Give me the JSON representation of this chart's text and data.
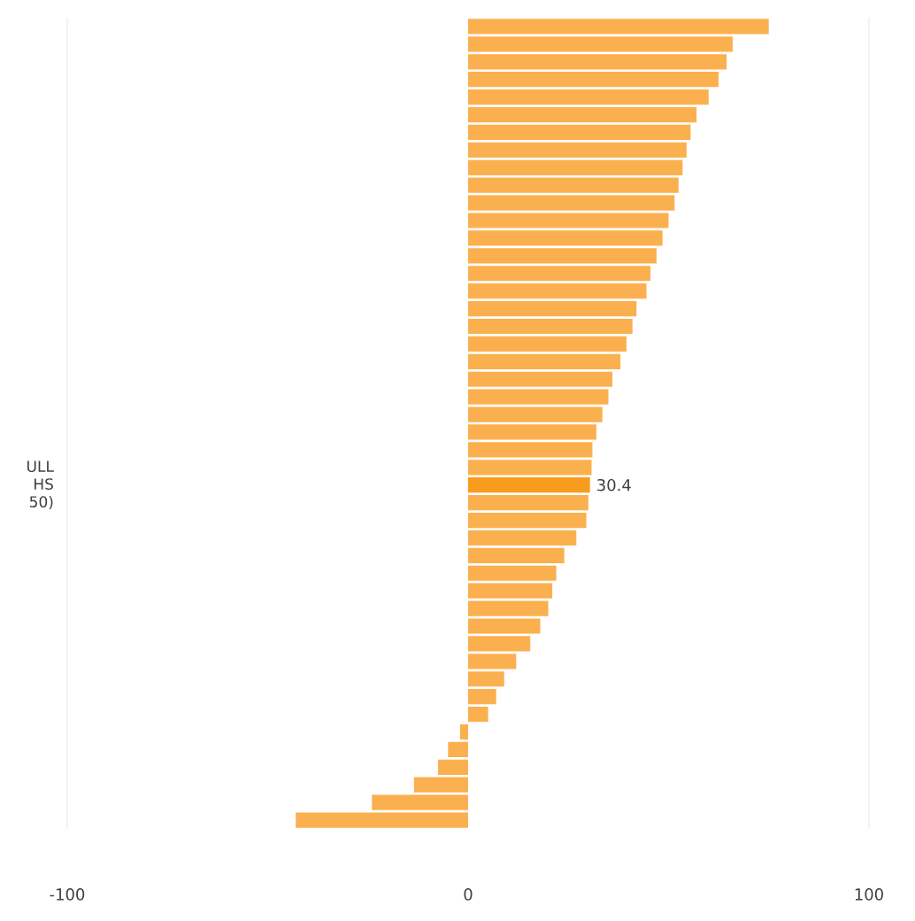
{
  "chart_data": {
    "type": "bar",
    "orientation": "horizontal",
    "categories": [
      null,
      null,
      null,
      null,
      null,
      null,
      null,
      null,
      null,
      null,
      null,
      null,
      null,
      null,
      null,
      null,
      null,
      null,
      null,
      null,
      null,
      null,
      null,
      null,
      null,
      null,
      "ULL HS 50)",
      null,
      null,
      null,
      null,
      null,
      null,
      null,
      null,
      null,
      null,
      null,
      null,
      null,
      null,
      null,
      null,
      null,
      null,
      null
    ],
    "values": [
      75,
      66,
      64.5,
      62.5,
      60,
      57,
      55.5,
      54.5,
      53.5,
      52.5,
      51.5,
      50,
      48.5,
      47,
      45.5,
      44.5,
      42,
      41,
      39.5,
      38,
      36,
      35,
      33.5,
      32,
      31,
      30.8,
      30.4,
      30,
      29.5,
      27,
      24,
      22,
      21,
      20,
      18,
      15.5,
      12,
      9,
      7,
      5,
      -2,
      -5,
      -7.5,
      -13.5,
      -24,
      -43
    ],
    "colors": [
      "#fbb04f",
      "#fbb04f",
      "#fbb04f",
      "#fbb04f",
      "#fbb04f",
      "#fbb04f",
      "#fbb04f",
      "#fbb04f",
      "#fbb04f",
      "#fbb04f",
      "#fbb04f",
      "#fbb04f",
      "#fbb04f",
      "#fbb04f",
      "#fbb04f",
      "#fbb04f",
      "#fbb04f",
      "#fbb04f",
      "#fbb04f",
      "#fbb04f",
      "#fbb04f",
      "#fbb04f",
      "#fbb04f",
      "#fbb04f",
      "#fbb04f",
      "#fbb04f",
      "#f99b1d",
      "#fbb04f",
      "#fbb04f",
      "#fbb04f",
      "#fbb04f",
      "#fbb04f",
      "#fbb04f",
      "#fbb04f",
      "#fbb04f",
      "#fbb04f",
      "#fbb04f",
      "#fbb04f",
      "#fbb04f",
      "#fbb04f",
      "#fbb04f",
      "#fbb04f",
      "#fbb04f",
      "#fbb04f",
      "#fbb04f",
      "#fbb04f"
    ],
    "value_labels": [
      null,
      null,
      null,
      null,
      null,
      null,
      null,
      null,
      null,
      null,
      null,
      null,
      null,
      null,
      null,
      null,
      null,
      null,
      null,
      null,
      null,
      null,
      null,
      null,
      null,
      null,
      "30.4",
      null,
      null,
      null,
      null,
      null,
      null,
      null,
      null,
      null,
      null,
      null,
      null,
      null,
      null,
      null,
      null,
      null,
      null,
      null
    ],
    "xlim": [
      -100,
      100
    ],
    "xticks": [
      -100,
      0,
      100
    ]
  }
}
